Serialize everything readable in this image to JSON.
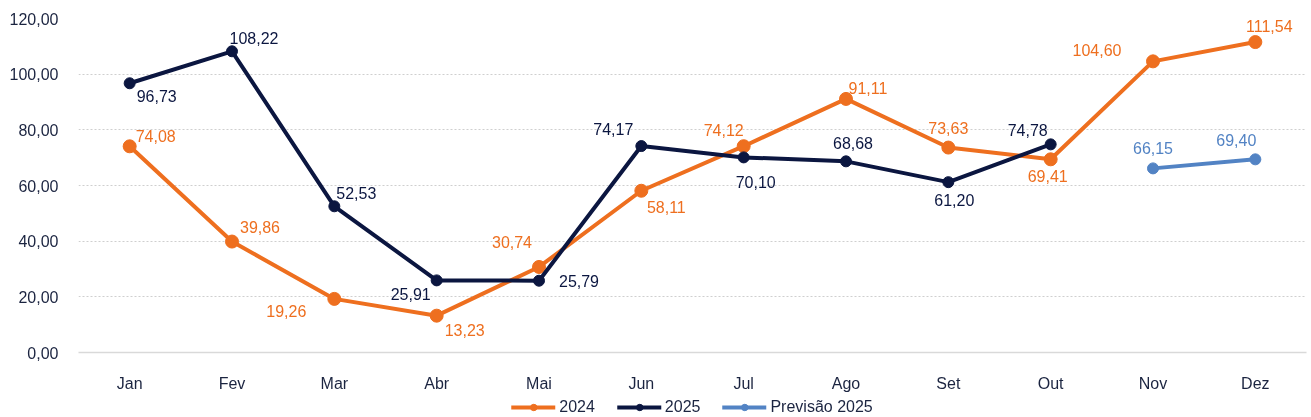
{
  "chart_data": {
    "type": "line",
    "categories": [
      "Jan",
      "Fev",
      "Mar",
      "Abr",
      "Mai",
      "Jun",
      "Jul",
      "Ago",
      "Set",
      "Out",
      "Nov",
      "Dez"
    ],
    "ylim": [
      0,
      120
    ],
    "yticks": [
      {
        "value": 0,
        "label": "0,00"
      },
      {
        "value": 20,
        "label": "20,00"
      },
      {
        "value": 40,
        "label": "40,00"
      },
      {
        "value": 60,
        "label": "60,00"
      },
      {
        "value": 80,
        "label": "80,00"
      },
      {
        "value": 100,
        "label": "100,00"
      },
      {
        "value": 120,
        "label": "120,00"
      }
    ],
    "grid": "y",
    "legend": "bottom",
    "marker": "circle",
    "line_style": "solid",
    "series": [
      {
        "name": "2024",
        "color": "#ee6f1f",
        "values": [
          74.08,
          39.86,
          19.26,
          13.23,
          30.74,
          58.11,
          74.12,
          91.11,
          73.63,
          69.41,
          104.6,
          111.54
        ],
        "value_labels": [
          "74,08",
          "39,86",
          "19,26",
          "13,23",
          "30,74",
          "58,11",
          "74,12",
          "91,11",
          "73,63",
          "69,41",
          "104,60",
          "111,54"
        ]
      },
      {
        "name": "2025",
        "color": "#0b1640",
        "values": [
          96.73,
          108.22,
          52.53,
          25.91,
          25.79,
          74.17,
          70.1,
          68.68,
          61.2,
          74.78,
          null,
          null
        ],
        "value_labels": [
          "96,73",
          "108,22",
          "52,53",
          "25,91",
          "25,79",
          "74,17",
          "70,10",
          "68,68",
          "61,20",
          "74,78",
          null,
          null
        ]
      },
      {
        "name": "Previsão 2025",
        "color": "#5283c4",
        "values": [
          null,
          null,
          null,
          null,
          null,
          null,
          null,
          null,
          null,
          null,
          66.15,
          69.4
        ],
        "value_labels": [
          null,
          null,
          null,
          null,
          null,
          null,
          null,
          null,
          null,
          null,
          "66,15",
          "69,40"
        ]
      }
    ]
  }
}
